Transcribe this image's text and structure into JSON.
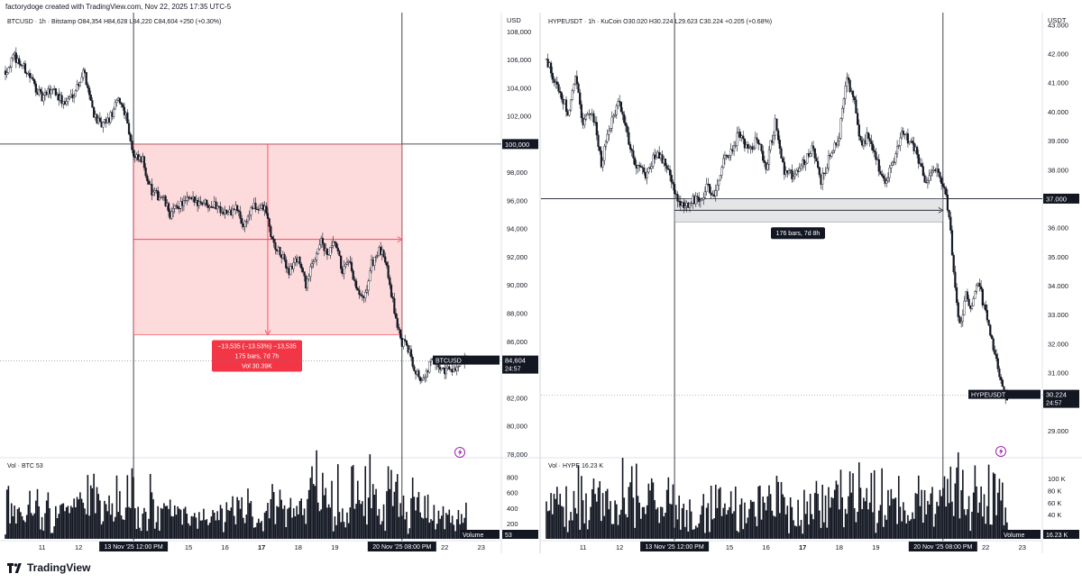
{
  "header": "factorydoge created with TradingView.com, Nov 22, 2025 17:35 UTC-5",
  "footer": {
    "brand": "TradingView"
  },
  "left": {
    "symbol_line": "BTCUSD · 1h · Bitstamp  O84,354  H84,628  L84,220  C84,604  +250 (+0.30%)",
    "currency": "USD",
    "yticks": [
      {
        "v": 108000,
        "t": "108,000"
      },
      {
        "v": 106000,
        "t": "106,000"
      },
      {
        "v": 104000,
        "t": "104,000"
      },
      {
        "v": 102000,
        "t": "102,000"
      },
      {
        "v": 100000,
        "t": "100,000"
      },
      {
        "v": 98000,
        "t": "98,000"
      },
      {
        "v": 96000,
        "t": "96,000"
      },
      {
        "v": 94000,
        "t": "94,000"
      },
      {
        "v": 92000,
        "t": "92,000"
      },
      {
        "v": 90000,
        "t": "90,000"
      },
      {
        "v": 88000,
        "t": "88,000"
      },
      {
        "v": 86000,
        "t": "86,000"
      },
      {
        "v": 84000,
        "t": "84,000"
      },
      {
        "v": 82000,
        "t": "82,000"
      },
      {
        "v": 80000,
        "t": "80,000"
      },
      {
        "v": 78000,
        "t": "78,000"
      }
    ],
    "ymin": 77800,
    "ymax": 109200,
    "hline_price_label": "100,000",
    "price_tag": {
      "name": "BTCUSD",
      "value": "84,604",
      "timer": "24:57"
    },
    "measure": {
      "line1": "−13,535 (−13.53%) −13,535",
      "line2": "175 bars, 7d 7h",
      "line3": "Vol 30.39K"
    },
    "volume": {
      "label": "Vol · BTC  53",
      "tag_name": "Volume",
      "tag_value": "53",
      "ticks": [
        {
          "v": 800,
          "t": "800"
        },
        {
          "v": 600,
          "t": "600"
        },
        {
          "v": 400,
          "t": "400"
        },
        {
          "v": 200,
          "t": "200"
        }
      ]
    },
    "xticks": [
      {
        "d": 11,
        "t": "11"
      },
      {
        "d": 12,
        "t": "12"
      },
      {
        "d": 15,
        "t": "15"
      },
      {
        "d": 16,
        "t": "16"
      },
      {
        "d": 17,
        "t": "17",
        "bold": true
      },
      {
        "d": 18,
        "t": "18"
      },
      {
        "d": 19,
        "t": "19"
      },
      {
        "d": 22,
        "t": "22"
      },
      {
        "d": 23,
        "t": "23"
      }
    ],
    "xmarkers": [
      {
        "d": 13.5,
        "t": "13 Nov '25   12:00 PM"
      },
      {
        "d": 20.833,
        "t": "20 Nov '25   08:00 PM"
      }
    ],
    "keypoints": [
      [
        10.0,
        105200
      ],
      [
        10.25,
        106200
      ],
      [
        10.6,
        105100
      ],
      [
        11.0,
        103200
      ],
      [
        11.3,
        104000
      ],
      [
        11.6,
        102800
      ],
      [
        11.9,
        103800
      ],
      [
        12.15,
        105200
      ],
      [
        12.4,
        102300
      ],
      [
        12.6,
        101200
      ],
      [
        12.85,
        101800
      ],
      [
        13.1,
        103200
      ],
      [
        13.3,
        102100
      ],
      [
        13.5,
        99000
      ],
      [
        13.75,
        98800
      ],
      [
        14.0,
        96500
      ],
      [
        14.3,
        96200
      ],
      [
        14.5,
        95000
      ],
      [
        14.75,
        95700
      ],
      [
        15.0,
        96000
      ],
      [
        15.4,
        95900
      ],
      [
        15.8,
        95600
      ],
      [
        16.1,
        95000
      ],
      [
        16.3,
        95500
      ],
      [
        16.5,
        94200
      ],
      [
        16.75,
        95500
      ],
      [
        17.1,
        95400
      ],
      [
        17.3,
        93000
      ],
      [
        17.55,
        92000
      ],
      [
        17.75,
        91000
      ],
      [
        18.0,
        92000
      ],
      [
        18.2,
        90000
      ],
      [
        18.4,
        91500
      ],
      [
        18.6,
        93200
      ],
      [
        18.8,
        92000
      ],
      [
        19.0,
        93000
      ],
      [
        19.2,
        91000
      ],
      [
        19.4,
        91500
      ],
      [
        19.6,
        89500
      ],
      [
        19.8,
        88800
      ],
      [
        20.0,
        91500
      ],
      [
        20.2,
        92400
      ],
      [
        20.4,
        91800
      ],
      [
        20.6,
        88500
      ],
      [
        20.8,
        86000
      ],
      [
        21.0,
        85500
      ],
      [
        21.15,
        84300
      ],
      [
        21.3,
        83500
      ],
      [
        21.45,
        83200
      ],
      [
        21.6,
        84600
      ],
      [
        21.8,
        84200
      ],
      [
        22.0,
        84000
      ],
      [
        22.2,
        84100
      ],
      [
        22.4,
        84200
      ],
      [
        22.6,
        84600
      ]
    ]
  },
  "right": {
    "symbol_line": "HYPEUSDT · 1h · KuCoin  O30.020  H30.224  L29.623  C30.224  +0.205 (+0.68%)",
    "currency": "USDT",
    "yticks": [
      {
        "v": 43,
        "t": "43.000"
      },
      {
        "v": 42,
        "t": "42.000"
      },
      {
        "v": 41,
        "t": "41.000"
      },
      {
        "v": 40,
        "t": "40.000"
      },
      {
        "v": 39,
        "t": "39.000"
      },
      {
        "v": 38,
        "t": "38.000"
      },
      {
        "v": 37,
        "t": "37.000"
      },
      {
        "v": 36,
        "t": "36.000"
      },
      {
        "v": 35,
        "t": "35.000"
      },
      {
        "v": 34,
        "t": "34.000"
      },
      {
        "v": 33,
        "t": "33.000"
      },
      {
        "v": 32,
        "t": "32.000"
      },
      {
        "v": 31,
        "t": "31.000"
      },
      {
        "v": 30,
        "t": "30.000"
      },
      {
        "v": 29,
        "t": "29.000"
      }
    ],
    "ymin": 28.1,
    "ymax": 43.35,
    "hline_price_label": "37.000",
    "price_tag": {
      "name": "HYPEUSDT",
      "value": "30.224",
      "timer": "24:57"
    },
    "measure": {
      "line1": "176 bars, 7d 8h"
    },
    "volume": {
      "label": "Vol · HYPE  16.23 K",
      "tag_name": "Volume",
      "tag_value": "16.23 K",
      "ticks": [
        {
          "v": 100,
          "t": "100 K"
        },
        {
          "v": 80,
          "t": "80 K"
        },
        {
          "v": 60,
          "t": "60 K"
        },
        {
          "v": 40,
          "t": "40 K"
        }
      ]
    },
    "xticks": [
      {
        "d": 11,
        "t": "11"
      },
      {
        "d": 12,
        "t": "12"
      },
      {
        "d": 15,
        "t": "15"
      },
      {
        "d": 16,
        "t": "16"
      },
      {
        "d": 17,
        "t": "17",
        "bold": true
      },
      {
        "d": 18,
        "t": "18"
      },
      {
        "d": 19,
        "t": "19"
      },
      {
        "d": 22,
        "t": "22"
      },
      {
        "d": 23,
        "t": "23"
      }
    ],
    "xmarkers": [
      {
        "d": 13.5,
        "t": "13 Nov '25   12:00 PM"
      },
      {
        "d": 20.833,
        "t": "20 Nov '25   08:00 PM"
      }
    ],
    "keypoints": [
      [
        10.0,
        41.8
      ],
      [
        10.3,
        40.8
      ],
      [
        10.6,
        40.0
      ],
      [
        10.8,
        41.2
      ],
      [
        11.0,
        39.6
      ],
      [
        11.25,
        40.1
      ],
      [
        11.5,
        38.2
      ],
      [
        11.75,
        39.5
      ],
      [
        12.0,
        40.4
      ],
      [
        12.25,
        39.0
      ],
      [
        12.5,
        38.0
      ],
      [
        12.75,
        37.8
      ],
      [
        13.0,
        38.6
      ],
      [
        13.25,
        38.2
      ],
      [
        13.5,
        37.2
      ],
      [
        13.75,
        36.6
      ],
      [
        14.0,
        37.0
      ],
      [
        14.2,
        36.8
      ],
      [
        14.4,
        37.5
      ],
      [
        14.6,
        37.0
      ],
      [
        14.8,
        38.2
      ],
      [
        15.0,
        38.6
      ],
      [
        15.25,
        39.2
      ],
      [
        15.5,
        38.6
      ],
      [
        15.75,
        39.0
      ],
      [
        16.0,
        38.1
      ],
      [
        16.25,
        39.6
      ],
      [
        16.5,
        38.0
      ],
      [
        16.75,
        37.8
      ],
      [
        17.0,
        38.2
      ],
      [
        17.25,
        38.8
      ],
      [
        17.5,
        37.6
      ],
      [
        17.75,
        38.5
      ],
      [
        18.0,
        39.2
      ],
      [
        18.2,
        41.2
      ],
      [
        18.4,
        40.4
      ],
      [
        18.6,
        38.8
      ],
      [
        18.8,
        39.2
      ],
      [
        19.0,
        38.4
      ],
      [
        19.25,
        37.5
      ],
      [
        19.5,
        38.4
      ],
      [
        19.7,
        39.3
      ],
      [
        19.9,
        39.0
      ],
      [
        20.1,
        38.6
      ],
      [
        20.35,
        37.5
      ],
      [
        20.6,
        38.0
      ],
      [
        20.8,
        37.6
      ],
      [
        21.0,
        36.5
      ],
      [
        21.15,
        34.0
      ],
      [
        21.3,
        32.5
      ],
      [
        21.45,
        33.8
      ],
      [
        21.6,
        33.2
      ],
      [
        21.8,
        34.2
      ],
      [
        22.0,
        33.0
      ],
      [
        22.15,
        32.2
      ],
      [
        22.3,
        31.4
      ],
      [
        22.45,
        30.4
      ],
      [
        22.55,
        30.1
      ],
      [
        22.6,
        30.22
      ]
    ]
  }
}
